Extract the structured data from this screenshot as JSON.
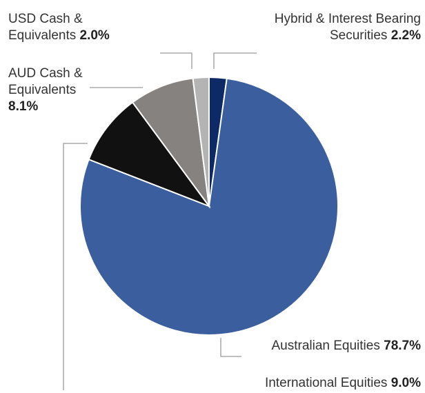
{
  "chart_data": {
    "type": "pie",
    "categories": [
      "Hybrid & Interest Bearing Securities",
      "Australian Equities",
      "International Equities",
      "AUD Cash & Equivalents",
      "USD Cash & Equivalents"
    ],
    "values": [
      2.2,
      78.7,
      9.0,
      8.1,
      2.0
    ],
    "value_labels": [
      "2.2%",
      "78.7%",
      "9.0%",
      "8.1%",
      "2.0%"
    ],
    "colors": [
      "#0d2a66",
      "#3a5e9e",
      "#111111",
      "#86827f",
      "#b4b4b4"
    ]
  }
}
